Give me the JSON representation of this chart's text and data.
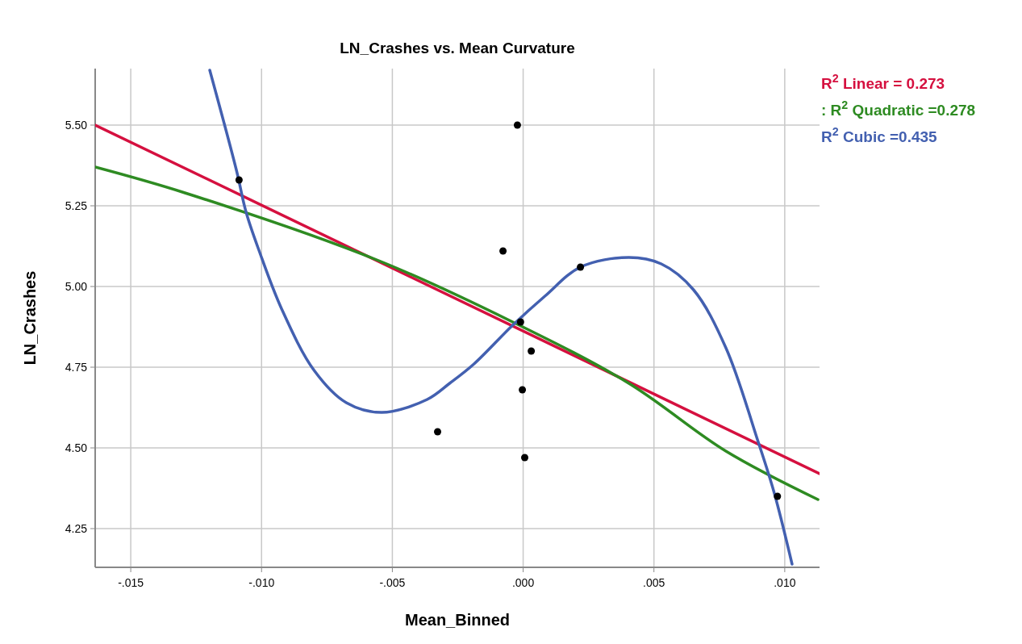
{
  "chart_data": {
    "type": "scatter",
    "title": "LN_Crashes vs. Mean Curvature",
    "xlabel": "Mean_Binned",
    "ylabel": "LN_Crashes",
    "xlim": [
      -0.01636,
      0.01133
    ],
    "ylim": [
      4.13,
      5.675
    ],
    "xticks": [
      {
        "value": -0.015,
        "label": "-.015"
      },
      {
        "value": -0.01,
        "label": "-.010"
      },
      {
        "value": -0.005,
        "label": "-.005"
      },
      {
        "value": 0,
        "label": ".000"
      },
      {
        "value": 0.005,
        "label": ".005"
      },
      {
        "value": 0.01,
        "label": ".010"
      }
    ],
    "yticks": [
      {
        "value": 4.25,
        "label": "4.25"
      },
      {
        "value": 4.5,
        "label": "4.50"
      },
      {
        "value": 4.75,
        "label": "4.75"
      },
      {
        "value": 5,
        "label": "5.00"
      },
      {
        "value": 5.25,
        "label": "5.25"
      },
      {
        "value": 5.5,
        "label": "5.50"
      }
    ],
    "grid": true,
    "legend": "top right",
    "marker": "circle",
    "series": [
      {
        "color": "#000000",
        "x": [
          -0.01086,
          -0.00022,
          -0.00077,
          0.00219,
          -0.0001,
          0.00031,
          -3e-05,
          -0.00327,
          6e-05,
          0.00972
        ],
        "values": [
          5.33,
          5.5,
          5.11,
          5.06,
          4.89,
          4.8,
          4.68,
          4.55,
          4.47,
          4.35
        ]
      },
      {
        "type": "line",
        "marker": "none",
        "name": "R$^{2}$ Linear = 0.273",
        "color": "#d5103f",
        "x": [
          -0.01636,
          0.01133
        ],
        "values": [
          5.5,
          4.42
        ]
      },
      {
        "type": "line",
        "marker": "none",
        "name": ": R$^{2}$ Quadratic =0.278",
        "color": "#2e8b22",
        "x": [
          -0.01636,
          -0.01293,
          -0.00552,
          -0.0004,
          0.00404,
          0.00775,
          0.01127
        ],
        "values": [
          5.37,
          5.29,
          5.08,
          4.89,
          4.7,
          4.49,
          4.34
        ]
      },
      {
        "type": "line",
        "marker": "none",
        "name": "R$^{2}$ Cubic =0.435",
        "color": "#4360b0",
        "x": [
          -0.01198,
          -0.01096,
          -0.01059,
          -0.01009,
          -0.00923,
          -0.00799,
          -0.00676,
          -0.0054,
          -0.00367,
          -0.00281,
          -0.00188,
          -0.0004,
          0.00083,
          0.00219,
          0.00404,
          0.00528,
          0.00651,
          0.00775,
          0.00898,
          0.0096,
          0.01028
        ],
        "values": [
          5.67,
          5.36,
          5.23,
          5.11,
          4.93,
          4.74,
          4.64,
          4.61,
          4.65,
          4.7,
          4.76,
          4.88,
          4.97,
          5.06,
          5.09,
          5.07,
          4.99,
          4.81,
          4.52,
          4.36,
          4.14
        ]
      }
    ]
  }
}
